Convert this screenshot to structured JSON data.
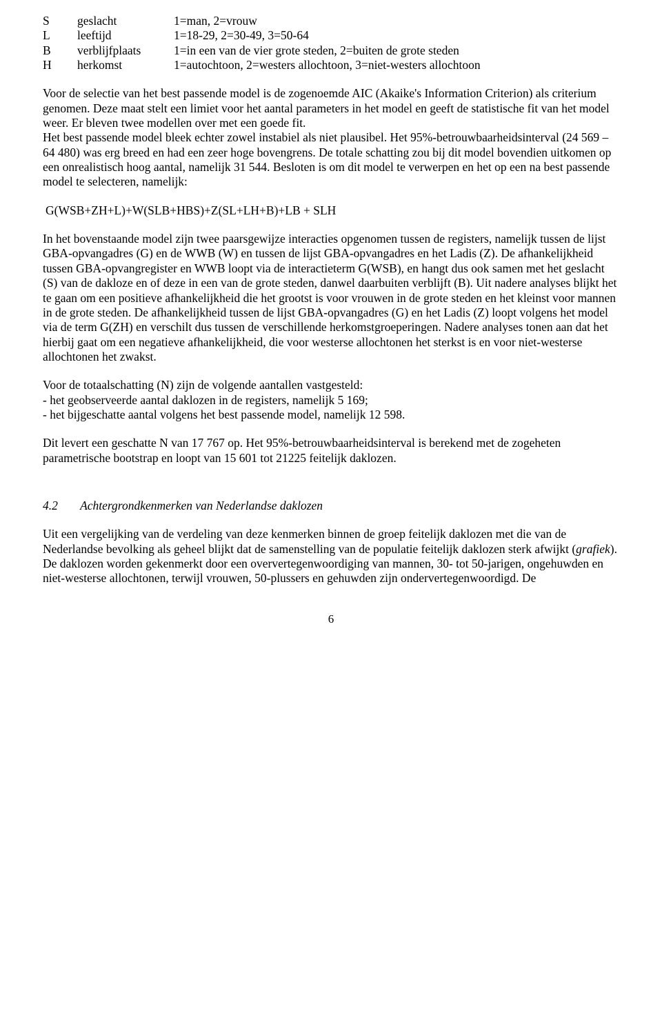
{
  "definitions": [
    {
      "code": "S",
      "term": "geslacht",
      "desc": "1=man, 2=vrouw"
    },
    {
      "code": "L",
      "term": "leeftijd",
      "desc": "1=18-29, 2=30-49, 3=50-64"
    },
    {
      "code": "B",
      "term": "verblijfplaats",
      "desc": "1=in een van de vier grote steden, 2=buiten de grote steden"
    },
    {
      "code": "H",
      "term": "herkomst",
      "desc": "1=autochtoon, 2=westers allochtoon, 3=niet-westers allochtoon"
    }
  ],
  "para1": "Voor de selectie van het best passende model is de zogenoemde AIC (Akaike's Information Criterion) als criterium genomen. Deze maat stelt een limiet voor het aantal parameters in het model en geeft de statistische fit van het model weer. Er bleven twee modellen over met een goede fit.",
  "para2": "Het best passende model bleek echter zowel instabiel als niet plausibel. Het 95%-betrouwbaarheidsinterval (24 569 – 64 480) was erg breed en had een zeer hoge bovengrens. De totale schatting zou bij dit model bovendien uitkomen op een onrealistisch hoog aantal, namelijk 31 544. Besloten is om dit model te verwerpen en het op een na best passende model te selecteren, namelijk:",
  "formula": "G(WSB+ZH+L)+W(SLB+HBS)+Z(SL+LH+B)+LB + SLH",
  "para3": "In het bovenstaande model zijn twee paarsgewijze interacties opgenomen tussen de registers, namelijk tussen de lijst GBA-opvangadres (G) en de WWB (W) en tussen de lijst GBA-opvangadres en het Ladis (Z). De afhankelijkheid tussen GBA-opvangregister en WWB loopt via de interactieterm G(WSB), en hangt dus ook samen met het geslacht (S) van de dakloze en of deze in een van de grote steden, danwel daarbuiten verblijft (B). Uit nadere analyses blijkt het te gaan om een positieve afhankelijkheid die het grootst is voor vrouwen in de grote steden en het kleinst voor mannen in de grote steden. De afhankelijkheid tussen de lijst GBA-opvangadres (G) en het Ladis (Z) loopt volgens het model via de term G(ZH) en verschilt dus tussen de verschillende herkomstgroeperingen. Nadere analyses tonen aan dat het hierbij gaat om een negatieve afhankelijkheid, die voor westerse allochtonen het sterkst is en voor niet-westerse allochtonen het zwakst.",
  "para4a": "Voor de totaalschatting (N) zijn de volgende aantallen vastgesteld:",
  "para4b": "- het geobserveerde aantal daklozen in de registers, namelijk 5 169;",
  "para4c": "- het bijgeschatte aantal volgens het best passende model, namelijk 12 598.",
  "para5": "Dit levert een geschatte N van 17 767 op. Het 95%-betrouwbaarheidsinterval is berekend met de zogeheten parametrische bootstrap en loopt van 15 601 tot 21225 feitelijk daklozen.",
  "section": {
    "num": "4.2",
    "title": "Achtergrondkenmerken van Nederlandse daklozen"
  },
  "para6_pre": "Uit een vergelijking van de verdeling van deze kenmerken binnen de groep feitelijk daklozen met die van de Nederlandse bevolking als geheel blijkt dat de samenstelling van de populatie feitelijk daklozen sterk afwijkt (",
  "para6_em": "grafiek",
  "para6_post": "). De daklozen worden gekenmerkt door een oververtegenwoordiging van mannen, 30- tot 50-jarigen, ongehuwden en niet-westerse allochtonen, terwijl vrouwen, 50-plussers en gehuwden zijn ondervertegenwoordigd. De",
  "page_number": "6"
}
